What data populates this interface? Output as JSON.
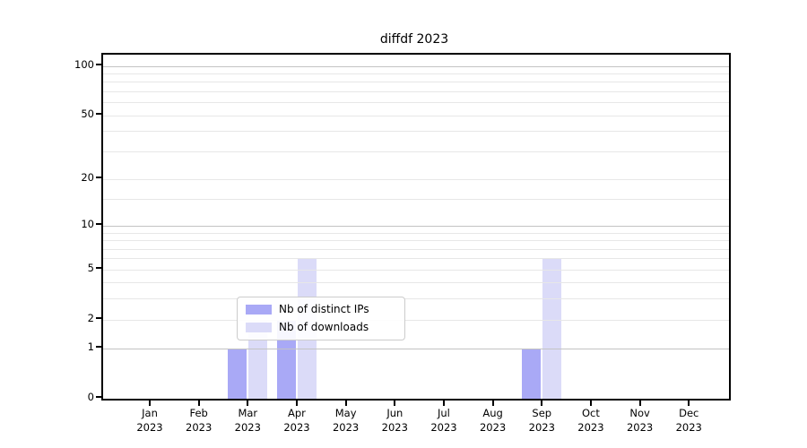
{
  "title": "diffdf 2023",
  "colors": {
    "distinct_ips_bar": "#a9a9f6",
    "downloads_bar": "#dbdbf8",
    "grid_major": "#c3c3c3",
    "grid_minor": "#e7e7e7",
    "spine": "#000000",
    "legend_border": "#cccccc",
    "text": "#000000"
  },
  "chart_data": {
    "type": "bar",
    "title": "diffdf 2023",
    "categories": [
      "Jan 2023",
      "Feb 2023",
      "Mar 2023",
      "Apr 2023",
      "May 2023",
      "Jun 2023",
      "Jul 2023",
      "Aug 2023",
      "Sep 2023",
      "Oct 2023",
      "Nov 2023",
      "Dec 2023"
    ],
    "series": [
      {
        "name": "Nb of distinct IPs",
        "color": "#a9a9f6",
        "values": [
          0,
          0,
          1,
          2,
          0,
          0,
          0,
          0,
          1,
          0,
          0,
          0
        ]
      },
      {
        "name": "Nb of downloads",
        "color": "#dbdbf8",
        "values": [
          0,
          0,
          2,
          6,
          0,
          0,
          0,
          0,
          6,
          0,
          0,
          0
        ]
      }
    ],
    "xlabel": "",
    "ylabel": "",
    "y_scale": "log10(1+x)",
    "ylim": [
      0,
      117
    ],
    "y_ticks": [
      0,
      1,
      2,
      5,
      10,
      20,
      50,
      100
    ],
    "y_major_gridlines": [
      1,
      10,
      100
    ],
    "y_minor_gridlines": [
      2,
      3,
      4,
      5,
      6,
      7,
      8,
      9,
      15,
      20,
      30,
      40,
      50,
      60,
      70,
      80,
      90
    ],
    "grid": true,
    "legend_position": "inside-bottom-center"
  }
}
